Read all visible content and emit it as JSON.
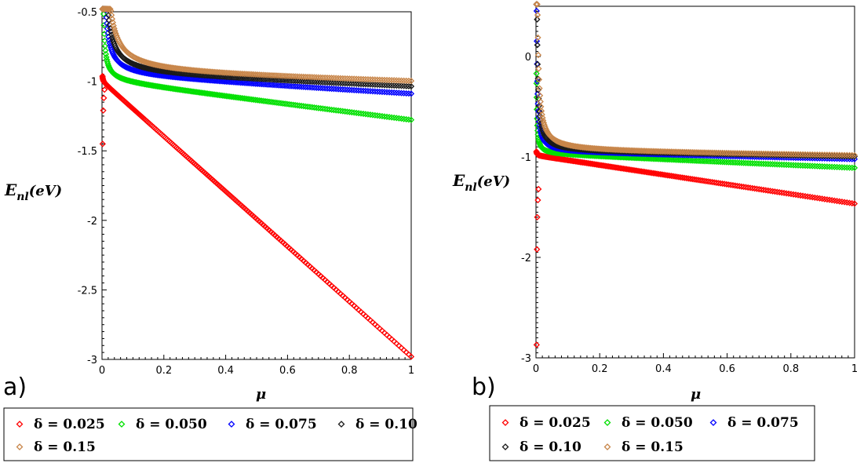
{
  "chart_data": [
    {
      "type": "scatter",
      "panel_label": "a)",
      "xlabel": "μ",
      "ylabel": {
        "main": "E",
        "sub": "nl",
        "rest": "(eV)"
      },
      "xlim": [
        0,
        1
      ],
      "ylim": [
        -3,
        -0.5
      ],
      "xticks": [
        "0",
        "0.2",
        "0.4",
        "0.6",
        "0.8",
        "1"
      ],
      "xtick_values": [
        0,
        0.2,
        0.4,
        0.6,
        0.8,
        1
      ],
      "yticks": [
        "-0.5",
        "-1",
        "-1.5",
        "-2",
        "-2.5",
        "-3"
      ],
      "ytick_values": [
        -0.5,
        -1,
        -1.5,
        -2,
        -2.5,
        -3
      ],
      "series": [
        {
          "name": "δ = 0.025",
          "color": "#ff0000",
          "a": -1.0,
          "b": -1.98,
          "c": 6e-05,
          "spike": [
            [
              0.002,
              -1.45
            ],
            [
              0.004,
              -1.21
            ],
            [
              0.006,
              -1.12
            ],
            [
              0.008,
              -1.06
            ]
          ]
        },
        {
          "name": "δ = 0.050",
          "color": "#00e000",
          "a": -1.0,
          "b": -0.28,
          "c": 0.0025
        },
        {
          "name": "δ = 0.075",
          "color": "#0000ff",
          "a": -0.965,
          "b": -0.13,
          "c": 0.006
        },
        {
          "name": "δ = 0.10",
          "color": "#1a1a1a",
          "a": -0.955,
          "b": -0.09,
          "c": 0.009
        },
        {
          "name": "δ = 0.15",
          "color": "#c8864a",
          "a": -0.945,
          "b": -0.065,
          "c": 0.013
        }
      ]
    },
    {
      "type": "scatter",
      "panel_label": "b)",
      "xlabel": "μ",
      "ylabel": {
        "main": "E",
        "sub": "nl",
        "rest": "(eV)"
      },
      "xlim": [
        0,
        1
      ],
      "ylim": [
        -3,
        0.5
      ],
      "xticks": [
        "0",
        "0.2",
        "0.4",
        "0.6",
        "0.8",
        "1"
      ],
      "xtick_values": [
        0,
        0.2,
        0.4,
        0.6,
        0.8,
        1
      ],
      "yticks": [
        "0",
        "-1",
        "-2",
        "-3"
      ],
      "ytick_values": [
        0,
        -1,
        -2,
        -3
      ],
      "series": [
        {
          "name": "δ = 0.025",
          "color": "#ff0000",
          "a": -0.985,
          "b": -0.48,
          "c": 6e-05,
          "spike": [
            [
              0.002,
              -2.87
            ],
            [
              0.003,
              -1.92
            ],
            [
              0.004,
              -1.6
            ],
            [
              0.006,
              -1.43
            ],
            [
              0.008,
              -1.32
            ]
          ]
        },
        {
          "name": "δ = 0.050",
          "color": "#00e000",
          "a": -0.97,
          "b": -0.14,
          "c": 0.0012
        },
        {
          "name": "δ = 0.075",
          "color": "#0000ff",
          "a": -0.955,
          "b": -0.07,
          "c": 0.003
        },
        {
          "name": "δ = 0.10",
          "color": "#1a1a1a",
          "a": -0.95,
          "b": -0.05,
          "c": 0.0045
        },
        {
          "name": "δ = 0.15",
          "color": "#c8864a",
          "a": -0.945,
          "b": -0.045,
          "c": 0.007
        }
      ]
    }
  ]
}
